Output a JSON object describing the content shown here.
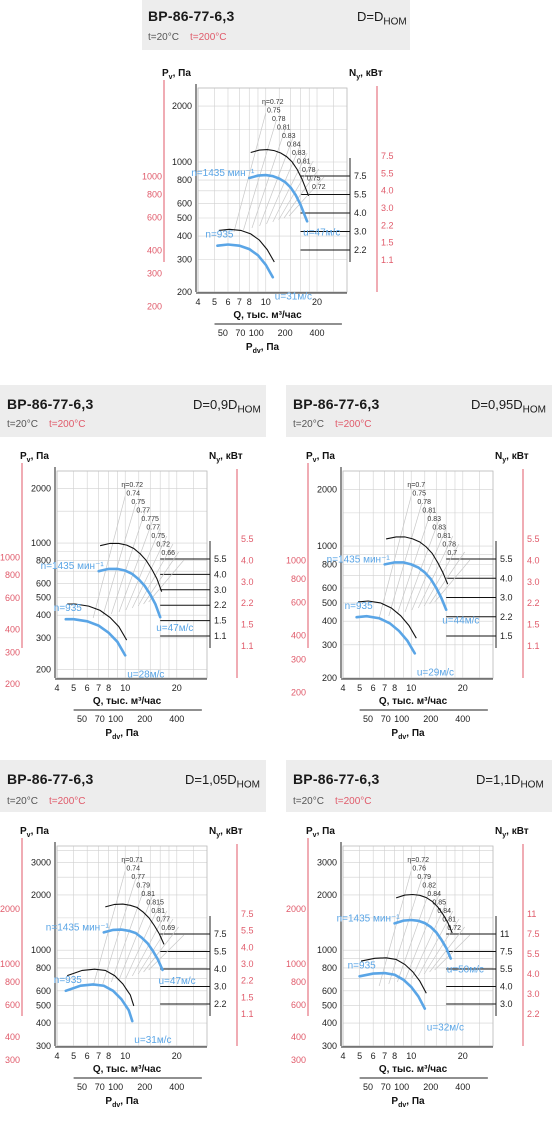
{
  "panels": [
    {
      "title": "ВР-86-77-6,3",
      "d_label": "D=D",
      "d_sub": "НОМ",
      "temp1": "t=20°C",
      "temp2": "t=200°C",
      "pv_label": "P",
      "pv_sub": "v",
      "pv_unit": ", Па",
      "ny_label": "N",
      "ny_sub": "y",
      "ny_unit": ", кВт",
      "q_label": "Q, тыс. м³/час",
      "pdv_label": "P",
      "pdv_sub": "dv",
      "pdv_unit": ", Па",
      "rpm_label": "n=1435 мин⁻¹",
      "rpm2_label": "n=935",
      "u_high": "u=47м/с",
      "u_low": "u=31м/с",
      "colors": {
        "curve": "#5aa5e6",
        "power": "#111111",
        "red": "#e05a6a",
        "grid": "#d0d0d0"
      }
    },
    {
      "title": "ВР-86-77-6,3",
      "d_label": "D=0,9D",
      "d_sub": "НОМ",
      "temp1": "t=20°C",
      "temp2": "t=200°C",
      "pv_label": "P",
      "pv_sub": "v",
      "pv_unit": ", Па",
      "ny_label": "N",
      "ny_sub": "y",
      "ny_unit": ", кВт",
      "q_label": "Q, тыс. м³/час",
      "pdv_label": "P",
      "pdv_sub": "dv",
      "pdv_unit": ", Па",
      "rpm_label": "n=1435 мин⁻¹",
      "rpm2_label": "n=935",
      "u_high": "u=47м/с",
      "u_low": "u=28м/с",
      "colors": {
        "curve": "#5aa5e6",
        "power": "#111111",
        "red": "#e05a6a",
        "grid": "#d0d0d0"
      }
    },
    {
      "title": "ВР-86-77-6,3",
      "d_label": "D=0,95D",
      "d_sub": "НОМ",
      "temp1": "t=20°C",
      "temp2": "t=200°C",
      "pv_label": "P",
      "pv_sub": "v",
      "pv_unit": ", Па",
      "ny_label": "N",
      "ny_sub": "y",
      "ny_unit": ", кВт",
      "q_label": "Q, тыс. м³/час",
      "pdv_label": "P",
      "pdv_sub": "dv",
      "pdv_unit": ", Па",
      "rpm_label": "n=1435 мин⁻¹",
      "rpm2_label": "n=935",
      "u_high": "u=44м/с",
      "u_low": "u=29м/с",
      "colors": {
        "curve": "#5aa5e6",
        "power": "#111111",
        "red": "#e05a6a",
        "grid": "#d0d0d0"
      }
    },
    {
      "title": "ВР-86-77-6,3",
      "d_label": "D=1,05D",
      "d_sub": "НОМ",
      "temp1": "t=20°C",
      "temp2": "t=200°C",
      "pv_label": "P",
      "pv_sub": "v",
      "pv_unit": ", Па",
      "ny_label": "N",
      "ny_sub": "y",
      "ny_unit": ", кВт",
      "q_label": "Q, тыс. м³/час",
      "pdv_label": "P",
      "pdv_sub": "dv",
      "pdv_unit": ", Па",
      "rpm_label": "n=1435 мин⁻¹",
      "rpm2_label": "n=935",
      "u_high": "u=47м/с",
      "u_low": "u=31м/с",
      "colors": {
        "curve": "#5aa5e6",
        "power": "#111111",
        "red": "#e05a6a",
        "grid": "#d0d0d0"
      }
    },
    {
      "title": "ВР-86-77-6,3",
      "d_label": "D=1,1D",
      "d_sub": "НОМ",
      "temp1": "t=20°C",
      "temp2": "t=200°C",
      "pv_label": "P",
      "pv_sub": "v",
      "pv_unit": ", Па",
      "ny_label": "N",
      "ny_sub": "y",
      "ny_unit": ", кВт",
      "q_label": "Q, тыс. м³/час",
      "pdv_label": "P",
      "pdv_sub": "dv",
      "pdv_unit": ", Па",
      "rpm_label": "n=1435 мин⁻¹",
      "rpm2_label": "n=935",
      "u_high": "u=50м/с",
      "u_low": "u=32м/с",
      "colors": {
        "curve": "#5aa5e6",
        "power": "#111111",
        "red": "#e05a6a",
        "grid": "#d0d0d0"
      }
    }
  ],
  "chart_data": [
    {
      "type": "line",
      "log_x": true,
      "log_y": true,
      "x_ticks": [
        4,
        5,
        6,
        7,
        8,
        10,
        20
      ],
      "y_ticks": [
        200,
        300,
        400,
        500,
        600,
        800,
        1000,
        2000
      ],
      "y_red_ticks": [
        200,
        300,
        400,
        600,
        800,
        1000
      ],
      "pdv_ticks": [
        "50",
        "70",
        "100",
        "200",
        "400"
      ],
      "eta_labels": [
        "η=0.72",
        "0.75",
        "0.78",
        "0.81",
        "0.83",
        "0.84",
        "0.83",
        "0.81",
        "0.78",
        "0.75",
        "0.72"
      ],
      "n_black_ticks": [
        "7.5",
        "5.5",
        "4.0",
        "3.0",
        "2.2"
      ],
      "n_red_ticks": [
        "7.5",
        "5.5",
        "4.0",
        "3.0",
        "2.2",
        "1.5",
        "1.1"
      ],
      "series": [
        {
          "name": "n=1435 мин⁻¹",
          "x": [
            8,
            9,
            10,
            11,
            12,
            13,
            14,
            15,
            16,
            17.5
          ],
          "y": [
            820,
            845,
            850,
            840,
            815,
            780,
            730,
            665,
            590,
            480
          ]
        },
        {
          "name": "n=935",
          "x": [
            5.2,
            6,
            7,
            8,
            9,
            10,
            11
          ],
          "y": [
            355,
            360,
            355,
            340,
            315,
            280,
            240
          ]
        }
      ]
    },
    {
      "type": "line",
      "log_x": true,
      "log_y": true,
      "x_ticks": [
        4,
        5,
        6,
        7,
        8,
        10,
        20
      ],
      "y_ticks": [
        200,
        300,
        400,
        500,
        600,
        800,
        1000,
        2000
      ],
      "y_red_ticks": [
        200,
        300,
        400,
        600,
        800,
        1000
      ],
      "pdv_ticks": [
        "50",
        "70",
        "100",
        "200",
        "400"
      ],
      "eta_labels": [
        "η=0.72",
        "0.74",
        "0.75",
        "0.77",
        "0.775",
        "0.77",
        "0.75",
        "0.72",
        "0.66"
      ],
      "n_black_ticks": [
        "5.5",
        "4.0",
        "3.0",
        "2.2",
        "1.5",
        "1.1"
      ],
      "n_red_ticks": [
        "5.5",
        "4.0",
        "3.0",
        "2.2",
        "1.5",
        "1.1"
      ],
      "series": [
        {
          "name": "n=1435 мин⁻¹",
          "x": [
            7,
            8,
            9,
            10,
            11,
            12,
            13,
            14,
            15,
            16
          ],
          "y": [
            700,
            720,
            720,
            705,
            675,
            630,
            580,
            520,
            460,
            390
          ]
        },
        {
          "name": "n=935",
          "x": [
            4.5,
            5,
            6,
            7,
            8,
            9,
            10
          ],
          "y": [
            380,
            380,
            370,
            350,
            320,
            285,
            240
          ]
        }
      ]
    },
    {
      "type": "line",
      "log_x": true,
      "log_y": true,
      "x_ticks": [
        4,
        5,
        6,
        7,
        8,
        10,
        20
      ],
      "y_ticks": [
        200,
        300,
        400,
        500,
        600,
        800,
        1000,
        2000
      ],
      "y_red_ticks": [
        200,
        300,
        400,
        600,
        800,
        1000
      ],
      "pdv_ticks": [
        "50",
        "70",
        "100",
        "200",
        "400"
      ],
      "eta_labels": [
        "η=0.7",
        "0.75",
        "0.78",
        "0.81",
        "0.83",
        "0.83",
        "0.81",
        "0.78",
        "0.7"
      ],
      "n_black_ticks": [
        "5.5",
        "4.0",
        "3.0",
        "2.2",
        "1.5"
      ],
      "n_red_ticks": [
        "5.5",
        "4.0",
        "3.0",
        "2.2",
        "1.5",
        "1.1"
      ],
      "series": [
        {
          "name": "n=1435 мин⁻¹",
          "x": [
            7,
            8,
            9,
            10,
            11,
            12,
            13,
            14,
            15,
            16
          ],
          "y": [
            800,
            820,
            820,
            800,
            770,
            725,
            670,
            600,
            530,
            460
          ]
        },
        {
          "name": "n=935",
          "x": [
            4.8,
            5.5,
            6.5,
            7.5,
            8.5,
            9.5,
            10.5
          ],
          "y": [
            420,
            425,
            415,
            390,
            355,
            315,
            270
          ]
        }
      ]
    },
    {
      "type": "line",
      "log_x": true,
      "log_y": true,
      "x_ticks": [
        4,
        5,
        6,
        7,
        8,
        10,
        20
      ],
      "y_ticks": [
        300,
        400,
        500,
        600,
        800,
        1000,
        2000,
        3000
      ],
      "y_red_ticks": [
        300,
        400,
        600,
        800,
        1000,
        2000
      ],
      "pdv_ticks": [
        "50",
        "70",
        "100",
        "200",
        "400"
      ],
      "eta_labels": [
        "η=0.71",
        "0.74",
        "0.77",
        "0.79",
        "0.81",
        "0.815",
        "0.81",
        "0.77",
        "0.69"
      ],
      "n_black_ticks": [
        "7.5",
        "5.5",
        "4.0",
        "3.0",
        "2.2"
      ],
      "n_red_ticks": [
        "7.5",
        "5.5",
        "4.0",
        "3.0",
        "2.2",
        "1.5",
        "1.1"
      ],
      "series": [
        {
          "name": "n=1435 мин⁻¹",
          "x": [
            7.5,
            8.5,
            9.5,
            10.5,
            11.5,
            12.5,
            13.5,
            14.5,
            15.5,
            16.5
          ],
          "y": [
            1250,
            1290,
            1295,
            1275,
            1240,
            1170,
            1090,
            990,
            890,
            780
          ]
        },
        {
          "name": "n=935",
          "x": [
            4.5,
            5.5,
            6.5,
            7.5,
            8.5,
            9.5,
            10.5,
            11
          ],
          "y": [
            600,
            640,
            650,
            640,
            600,
            540,
            470,
            410
          ]
        }
      ]
    },
    {
      "type": "line",
      "log_x": true,
      "log_y": true,
      "x_ticks": [
        4,
        5,
        6,
        7,
        8,
        10,
        20
      ],
      "y_ticks": [
        300,
        400,
        500,
        600,
        800,
        1000,
        2000,
        3000
      ],
      "y_red_ticks": [
        300,
        400,
        600,
        800,
        1000,
        2000
      ],
      "pdv_ticks": [
        "50",
        "70",
        "100",
        "200",
        "400"
      ],
      "eta_labels": [
        "η=0.72",
        "0.76",
        "0.79",
        "0.82",
        "0.84",
        "0.85",
        "0.84",
        "0.81",
        "0.72"
      ],
      "n_black_ticks": [
        "11",
        "7.5",
        "5.5",
        "4.0",
        "3.0"
      ],
      "n_red_ticks": [
        "11",
        "7.5",
        "5.5",
        "4.0",
        "3.0",
        "2.2"
      ],
      "series": [
        {
          "name": "n=1435 мин⁻¹",
          "x": [
            8,
            9,
            10,
            11,
            12,
            13,
            14,
            15,
            16,
            17
          ],
          "y": [
            1400,
            1450,
            1460,
            1445,
            1405,
            1340,
            1250,
            1140,
            1030,
            900
          ]
        },
        {
          "name": "n=935",
          "x": [
            5,
            6,
            7,
            8,
            9,
            10,
            11,
            12
          ],
          "y": [
            720,
            745,
            750,
            735,
            690,
            630,
            560,
            480
          ]
        }
      ]
    }
  ]
}
